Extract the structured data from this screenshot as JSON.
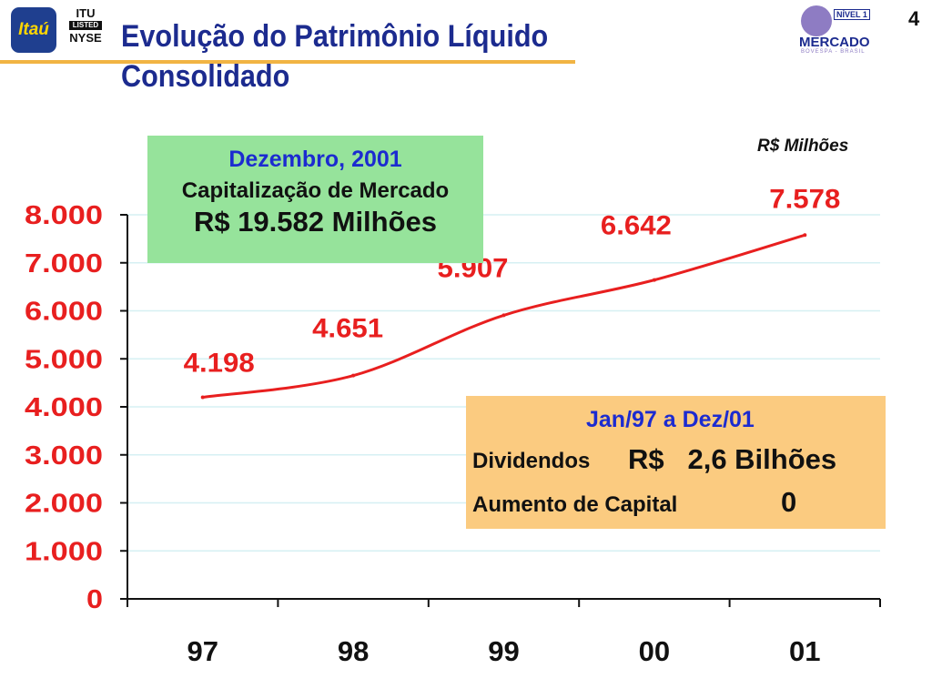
{
  "header": {
    "title_line1": "Evolução do Patrimônio Líquido",
    "title_line2": "Consolidado",
    "page_number": "4",
    "logos": {
      "itau": "Itaú",
      "nyse": [
        "ITU",
        "LISTED",
        "NYSE"
      ],
      "mercado": [
        "NÍVEL 1",
        "MERCADO",
        "BOVESPA - BRASIL"
      ]
    }
  },
  "unit_label": "R$ Milhões",
  "market_cap_box": {
    "date": "Dezembro, 2001",
    "label": "Capitalização de Mercado",
    "value": "R$ 19.582 Milhões"
  },
  "dividends_box": {
    "period": "Jan/97 a Dez/01",
    "dividends_label": "Dividendos",
    "dividends_value": "R$   2,6 Bilhões",
    "capital_label": "Aumento de Capital",
    "capital_value": "0"
  },
  "colors": {
    "title": "#1c2b8f",
    "line": "#e81f1f",
    "axis_labels": "#e81f1f",
    "grid": "#d6f0f3",
    "green_box": "#96e39b",
    "orange_box": "#fbcb80",
    "title_rule": "#f1b443"
  },
  "chart_data": {
    "type": "line",
    "categories": [
      "97",
      "98",
      "99",
      "00",
      "01"
    ],
    "series": [
      {
        "values": [
          4198,
          4651,
          5907,
          6642,
          7578
        ]
      }
    ],
    "data_labels": [
      "4.198",
      "4.651",
      "5.907",
      "6.642",
      "7.578"
    ],
    "yticks": [
      0,
      1000,
      2000,
      3000,
      4000,
      5000,
      6000,
      7000,
      8000
    ],
    "ytick_labels": [
      "0",
      "1.000",
      "2.000",
      "3.000",
      "4.000",
      "5.000",
      "6.000",
      "7.000",
      "8.000"
    ],
    "ylim": [
      0,
      8000
    ],
    "grid": true,
    "smooth": true
  }
}
